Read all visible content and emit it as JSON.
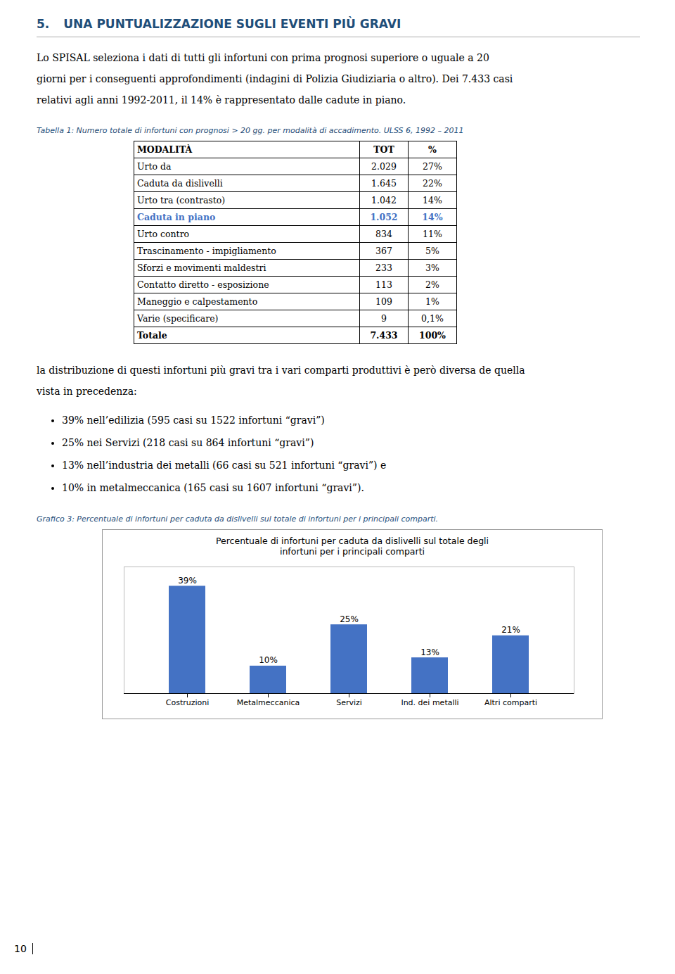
{
  "chart_data": {
    "type": "bar",
    "title": "Percentuale di infortuni per caduta da dislivelli sul totale degli\ninfortuni per i principali comparti",
    "categories": [
      "Costruzioni",
      "Metalmeccanica",
      "Servizi",
      "Ind. dei metalli",
      "Altri comparti"
    ],
    "values": [
      39,
      10,
      25,
      13,
      21
    ],
    "value_labels": [
      "39%",
      "10%",
      "25%",
      "13%",
      "21%"
    ],
    "data_labels": true,
    "color": "#4472C4",
    "ylim": [
      0,
      46
    ],
    "yticks": [],
    "tick_labels": "x",
    "grid": false,
    "annotations": {
      "heading": [
        "5.",
        "UNA PUNTUALIZZAZIONE SUGLI EVENTI PIÙ GRAVI"
      ],
      "paragraph1": [
        "Lo SPISAL seleziona i dati di tutti gli infortuni con prima prognosi superiore o uguale a 20",
        "giorni per i conseguenti approfondimenti (indagini di Polizia Giudiziaria o altro). Dei 7.433 casi",
        "relativi agli anni 1992-2011, il 14% è rappresentato dalle cadute in piano."
      ],
      "table_caption": "Tabella 1: Numero totale di infortuni con prognosi > 20 gg. per modalità di accadimento. ULSS 6, 1992 – 2011",
      "paragraph2": [
        "la distribuzione di questi infortuni più gravi tra i vari comparti produttivi è però diversa de quella",
        "vista in precedenza:"
      ],
      "bullets": [
        "39% nell’edilizia (595 casi su 1522 infortuni “gravi”)",
        "25% nei Servizi (218 casi su 864 infortuni “gravi”)",
        "13% nell’industria dei metalli (66 casi su 521 infortuni “gravi”) e",
        "10% in metalmeccanica (165 casi su 1607 infortuni “gravi”)."
      ],
      "chart_caption": "Grafico 3: Percentuale di infortuni per caduta da dislivelli sul totale di infortuni per i principali comparti.",
      "page_number": "10"
    },
    "table": {
      "headers": [
        "MODALITÀ",
        "TOT",
        "%"
      ],
      "rows": [
        [
          "Urto da",
          "2.029",
          "27%"
        ],
        [
          "Caduta da dislivelli",
          "1.645",
          "22%"
        ],
        [
          "Urto tra (contrasto)",
          "1.042",
          "14%"
        ],
        [
          "Caduta in piano",
          "1.052",
          "14%"
        ],
        [
          "Urto contro",
          "834",
          "11%"
        ],
        [
          "Trascinamento - impigliamento",
          "367",
          "5%"
        ],
        [
          "Sforzi e movimenti maldestri",
          "233",
          "3%"
        ],
        [
          "Contatto diretto - esposizione",
          "113",
          "2%"
        ],
        [
          "Maneggio e calpestamento",
          "109",
          "1%"
        ],
        [
          "Varie (specificare)",
          "9",
          "0,1%"
        ],
        [
          "Totale",
          "7.433",
          "100%"
        ]
      ],
      "highlighted_row": "Caduta in piano",
      "highlight_color": "#4472C4"
    }
  }
}
